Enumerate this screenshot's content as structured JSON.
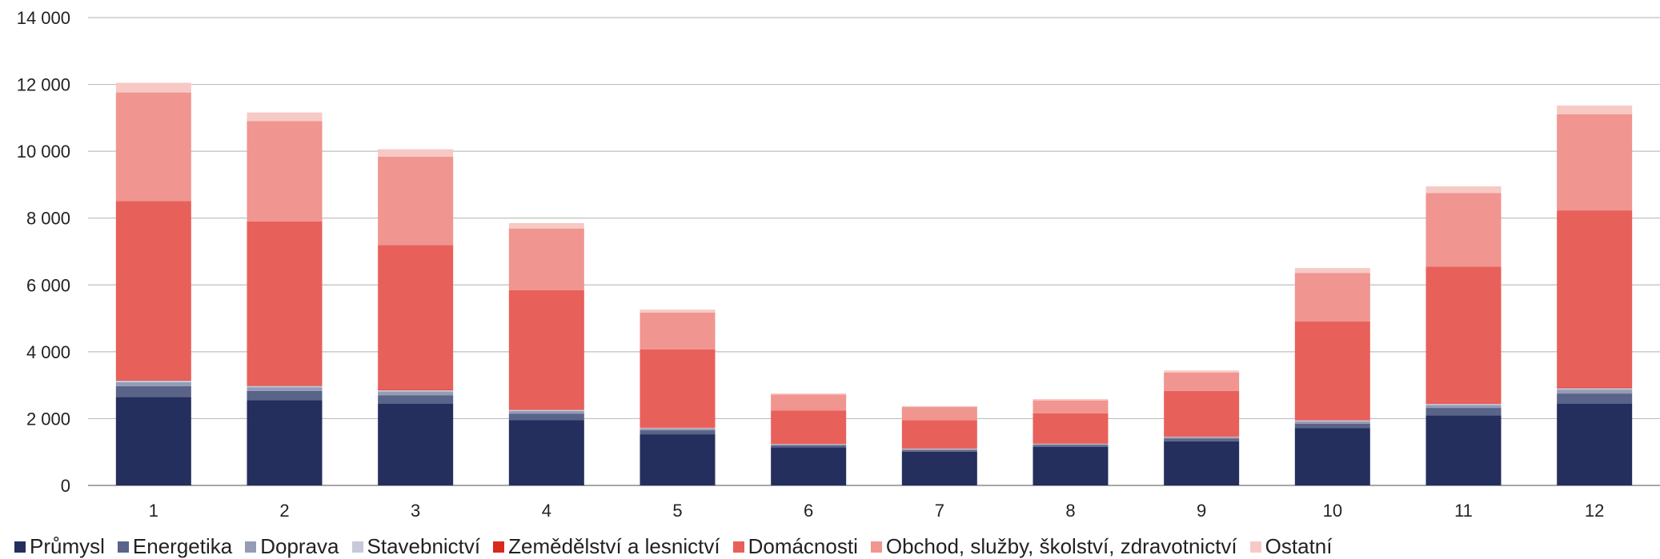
{
  "chart_data": {
    "type": "bar",
    "stacked": true,
    "categories": [
      "1",
      "2",
      "3",
      "4",
      "5",
      "6",
      "7",
      "8",
      "9",
      "10",
      "11",
      "12"
    ],
    "ylim": [
      0,
      14000
    ],
    "yticks": [
      0,
      2000,
      4000,
      6000,
      8000,
      10000,
      12000,
      14000
    ],
    "ytick_labels": [
      "0",
      "2 000",
      "4 000",
      "6 000",
      "8 000",
      "10 000",
      "12 000",
      "14 000"
    ],
    "grid": true,
    "legend_position": "bottom-left",
    "series": [
      {
        "name": "Průmysl",
        "color": "#252f5e",
        "values": [
          2650,
          2550,
          2450,
          1950,
          1530,
          1140,
          1010,
          1150,
          1320,
          1720,
          2100,
          2450
        ]
      },
      {
        "name": "Energetika",
        "color": "#5a6388",
        "values": [
          320,
          280,
          250,
          200,
          120,
          60,
          50,
          60,
          80,
          130,
          220,
          300
        ]
      },
      {
        "name": "Doprava",
        "color": "#959cb6",
        "values": [
          120,
          110,
          110,
          80,
          50,
          30,
          30,
          30,
          40,
          70,
          90,
          120
        ]
      },
      {
        "name": "Stavebnictví",
        "color": "#c5c9d8",
        "values": [
          50,
          40,
          40,
          30,
          20,
          10,
          10,
          10,
          15,
          25,
          30,
          40
        ]
      },
      {
        "name": "Zemědělství a lesnictví",
        "color": "#d9291c",
        "values": [
          20,
          20,
          20,
          10,
          10,
          5,
          5,
          5,
          5,
          10,
          10,
          20
        ]
      },
      {
        "name": "Domácnosti",
        "color": "#e8605a",
        "values": [
          5350,
          4900,
          4320,
          3570,
          2340,
          1000,
          850,
          900,
          1370,
          2950,
          4100,
          5300
        ]
      },
      {
        "name": "Obchod, služby, školství, zdravotnictví",
        "color": "#f0958f",
        "values": [
          3250,
          3000,
          2650,
          1850,
          1100,
          470,
          390,
          390,
          550,
          1450,
          2200,
          2880
        ]
      },
      {
        "name": "Ostatní",
        "color": "#f7c9c5",
        "values": [
          290,
          260,
          220,
          160,
          90,
          40,
          30,
          40,
          60,
          150,
          200,
          260
        ]
      }
    ]
  }
}
